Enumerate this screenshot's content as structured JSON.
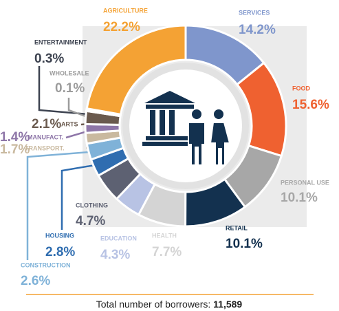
{
  "chart_data": {
    "type": "pie",
    "donut": true,
    "categories": [
      "SERVICES",
      "FOOD",
      "PERSONAL USE",
      "RETAIL",
      "HEALTH",
      "EDUCATION",
      "CLOTHING",
      "HOUSING",
      "CONSTRUCTION",
      "TRANSPORT.",
      "MANUFACT.",
      "ARTS",
      "WHOLESALE",
      "ENTERTAINMENT",
      "AGRICULTURE"
    ],
    "values": [
      14.2,
      15.6,
      10.1,
      10.1,
      7.7,
      4.3,
      4.7,
      2.8,
      2.6,
      1.7,
      1.4,
      2.1,
      0.1,
      0.3,
      22.2
    ],
    "value_labels": [
      "14.2%",
      "15.6%",
      "10.1%",
      "10.1%",
      "7.7%",
      "4.3%",
      "4.7%",
      "2.8%",
      "2.6%",
      "1.7%",
      "1.4%",
      "2.1%",
      "0.1%",
      "0.3%",
      "22.2%"
    ],
    "colors": [
      "#7f96cc",
      "#ef6130",
      "#a7a7a7",
      "#13314f",
      "#d4d4d4",
      "#b8c3e4",
      "#5d6172",
      "#2f6db0",
      "#7fb2d8",
      "#c9b99f",
      "#8e76a8",
      "#6a5a4e",
      "#9c9c9c",
      "#3d4350",
      "#f4a234"
    ],
    "footer": {
      "label": "Total number of borrowers:",
      "value": "11,589"
    }
  }
}
